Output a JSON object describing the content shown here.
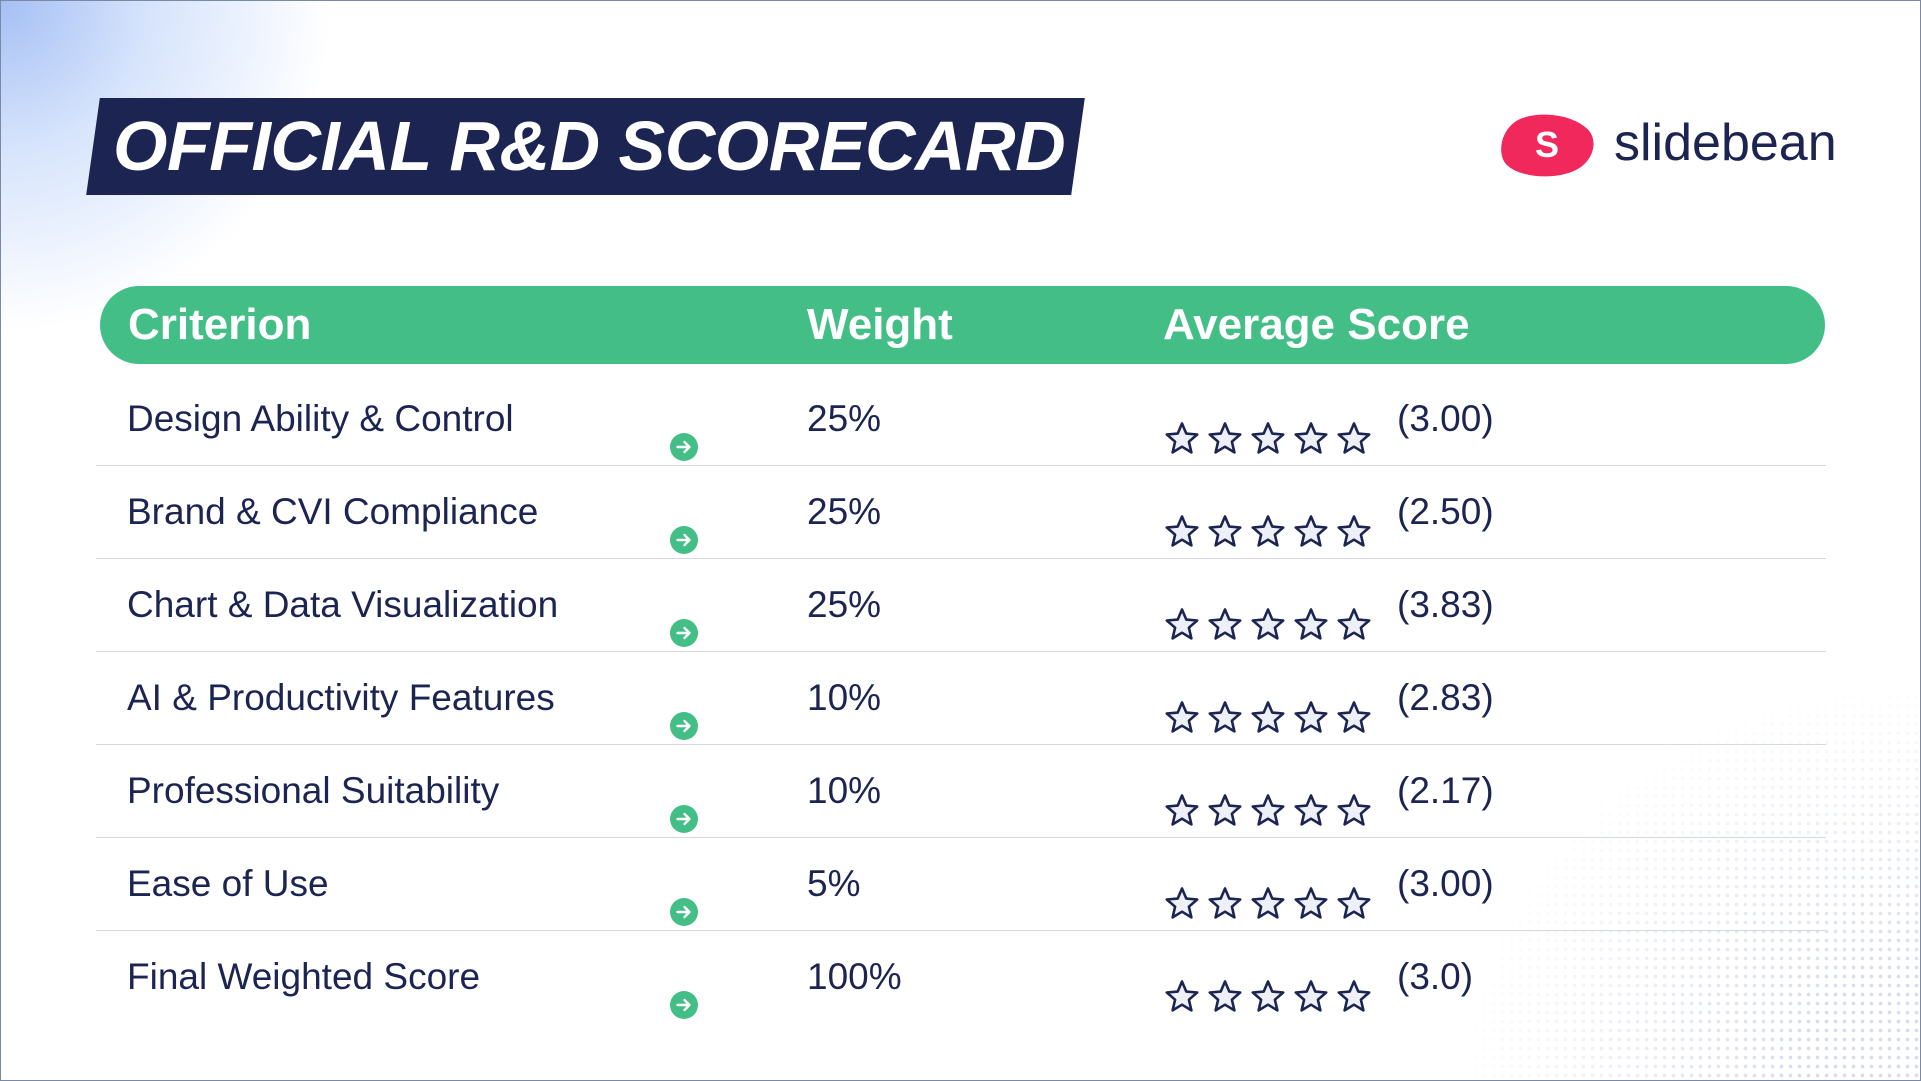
{
  "title": "OFFICIAL R&D SCORECARD",
  "brand": {
    "mark_letter": "S",
    "name": "slidebean",
    "mark_color": "#f1285b"
  },
  "colors": {
    "navy": "#1c2452",
    "green": "#42be86",
    "divider": "#d4d8e2"
  },
  "table": {
    "headers": {
      "criterion": "Criterion",
      "weight": "Weight",
      "score": "Average Score"
    },
    "rows": [
      {
        "criterion": "Design Ability & Control",
        "weight": "25%",
        "stars": 5,
        "score": "(3.00)"
      },
      {
        "criterion": "Brand & CVI Compliance",
        "weight": "25%",
        "stars": 5,
        "score": "(2.50)"
      },
      {
        "criterion": "Chart & Data Visualization",
        "weight": "25%",
        "stars": 5,
        "score": "(3.83)"
      },
      {
        "criterion": "AI & Productivity Features",
        "weight": "10%",
        "stars": 5,
        "score": "(2.83)"
      },
      {
        "criterion": "Professional Suitability",
        "weight": "10%",
        "stars": 5,
        "score": "(2.17)"
      },
      {
        "criterion": "Ease of Use",
        "weight": "5%",
        "stars": 5,
        "score": "(3.00)"
      },
      {
        "criterion": "Final Weighted Score",
        "weight": "100%",
        "stars": 5,
        "score": "(3.0)"
      }
    ],
    "row_icon": "arrow-right-circle-icon",
    "star_icon": "star-outline-icon"
  }
}
